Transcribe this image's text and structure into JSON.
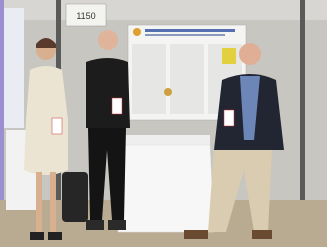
{
  "sign": {
    "label": "1150"
  }
}
